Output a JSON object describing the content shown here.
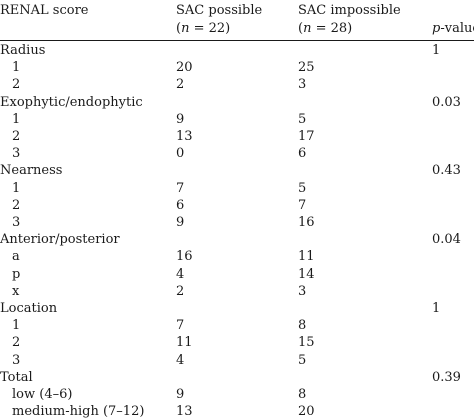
{
  "header": {
    "col1": "RENAL score",
    "col2_line1": "SAC possible",
    "col2_n_open": "(",
    "col2_n_var": "n",
    "col2_n_rest": " = 22)",
    "col3_line1": "SAC impossible",
    "col3_n_open": "(",
    "col3_n_var": "n",
    "col3_n_rest": " = 28)",
    "col4_var": "p",
    "col4_rest": "-value"
  },
  "rows": [
    {
      "label": "Radius",
      "possible": "",
      "impossible": "",
      "p": "1",
      "indent": false
    },
    {
      "label": "1",
      "possible": "20",
      "impossible": "25",
      "p": "",
      "indent": true
    },
    {
      "label": "2",
      "possible": "2",
      "impossible": "3",
      "p": "",
      "indent": true
    },
    {
      "label": "Exophytic/endophytic",
      "possible": "",
      "impossible": "",
      "p": "0.03",
      "indent": false
    },
    {
      "label": "1",
      "possible": "9",
      "impossible": "5",
      "p": "",
      "indent": true
    },
    {
      "label": "2",
      "possible": "13",
      "impossible": "17",
      "p": "",
      "indent": true
    },
    {
      "label": "3",
      "possible": "0",
      "impossible": "6",
      "p": "",
      "indent": true
    },
    {
      "label": "Nearness",
      "possible": "",
      "impossible": "",
      "p": "0.43",
      "indent": false
    },
    {
      "label": "1",
      "possible": "7",
      "impossible": "5",
      "p": "",
      "indent": true
    },
    {
      "label": "2",
      "possible": "6",
      "impossible": "7",
      "p": "",
      "indent": true
    },
    {
      "label": "3",
      "possible": "9",
      "impossible": "16",
      "p": "",
      "indent": true
    },
    {
      "label": "Anterior/posterior",
      "possible": "",
      "impossible": "",
      "p": "0.04",
      "indent": false
    },
    {
      "label": "a",
      "possible": "16",
      "impossible": "11",
      "p": "",
      "indent": true
    },
    {
      "label": "p",
      "possible": "4",
      "impossible": "14",
      "p": "",
      "indent": true
    },
    {
      "label": "x",
      "possible": "2",
      "impossible": "3",
      "p": "",
      "indent": true
    },
    {
      "label": "Location",
      "possible": "",
      "impossible": "",
      "p": "1",
      "indent": false
    },
    {
      "label": "1",
      "possible": "7",
      "impossible": "8",
      "p": "",
      "indent": true
    },
    {
      "label": "2",
      "possible": "11",
      "impossible": "15",
      "p": "",
      "indent": true
    },
    {
      "label": "3",
      "possible": "4",
      "impossible": "5",
      "p": "",
      "indent": true
    },
    {
      "label": "Total",
      "possible": "",
      "impossible": "",
      "p": "0.39",
      "indent": false
    },
    {
      "label": "low (4–6)",
      "possible": "9",
      "impossible": "8",
      "p": "",
      "indent": true
    },
    {
      "label": "medium-high (7–12)",
      "possible": "13",
      "impossible": "20",
      "p": "",
      "indent": true
    }
  ]
}
